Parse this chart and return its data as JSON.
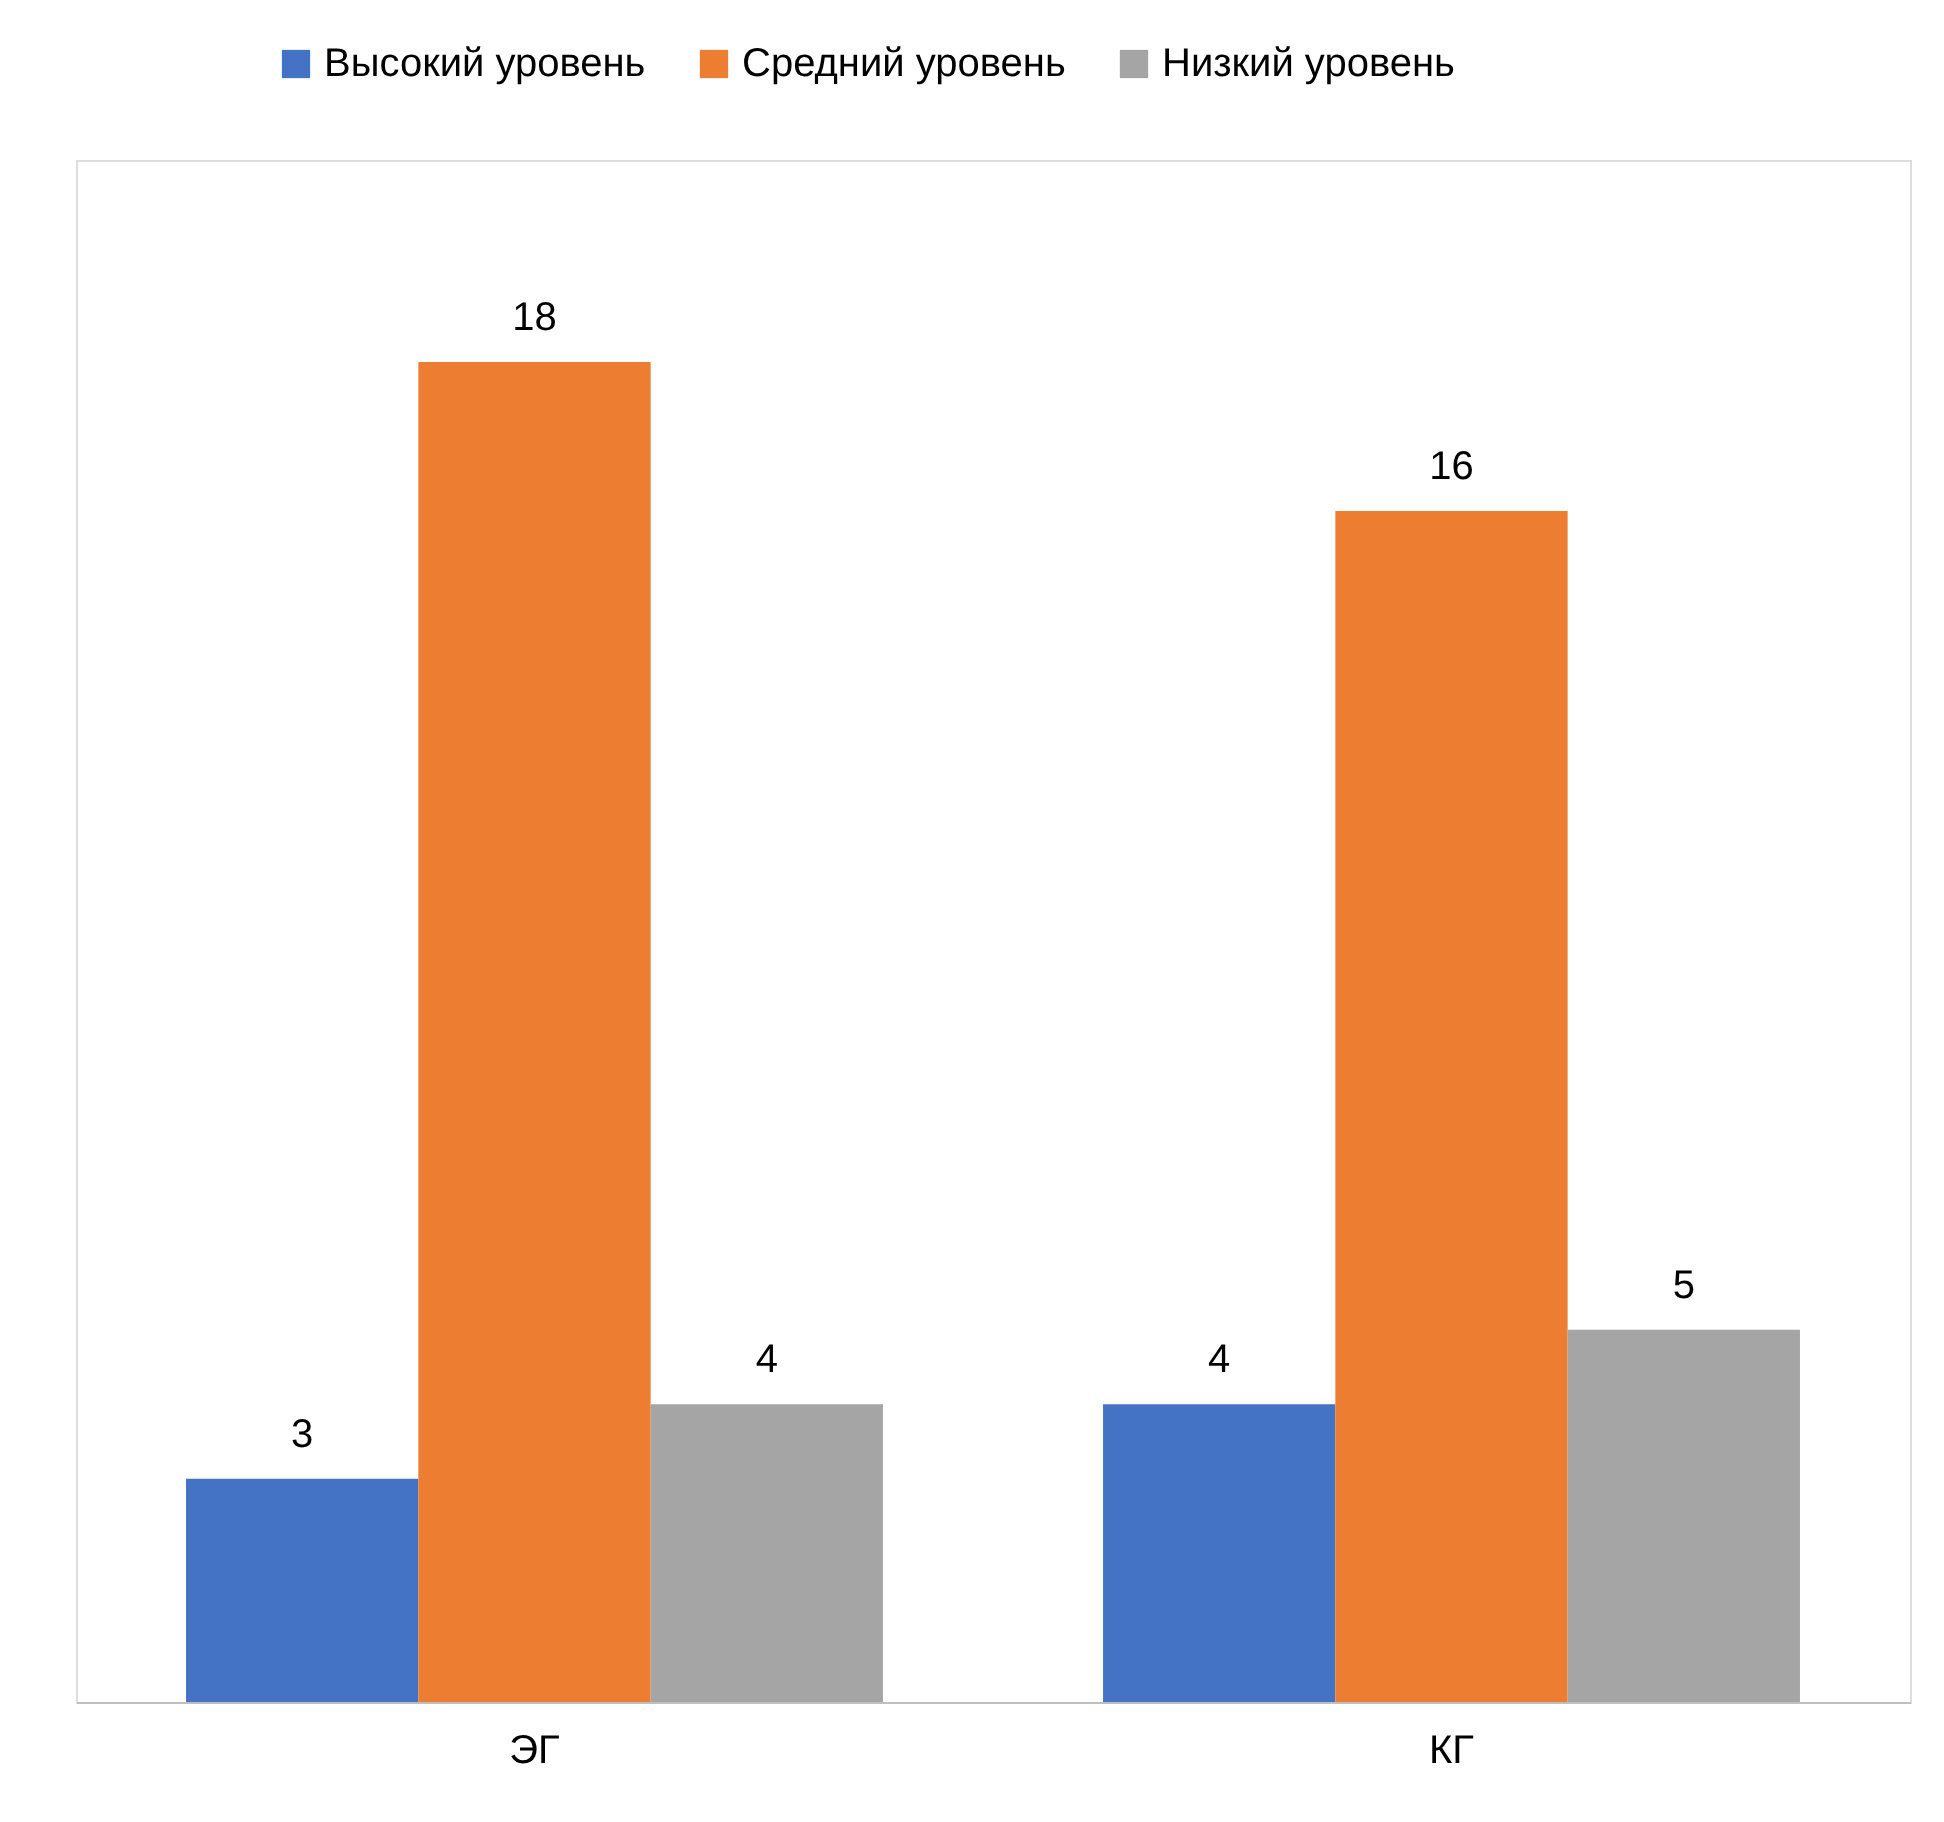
{
  "chart_data": {
    "type": "bar",
    "categories": [
      "ЭГ",
      "КГ"
    ],
    "series": [
      {
        "name": "Высокий уровень",
        "color": "#4472c4",
        "values": [
          3,
          4
        ]
      },
      {
        "name": "Средний уровень",
        "color": "#ed7d31",
        "values": [
          18,
          16
        ]
      },
      {
        "name": "Низкий уровень",
        "color": "#a5a5a5",
        "values": [
          4,
          5
        ]
      }
    ],
    "data_labels": true,
    "legend": "top",
    "grid": false
  }
}
